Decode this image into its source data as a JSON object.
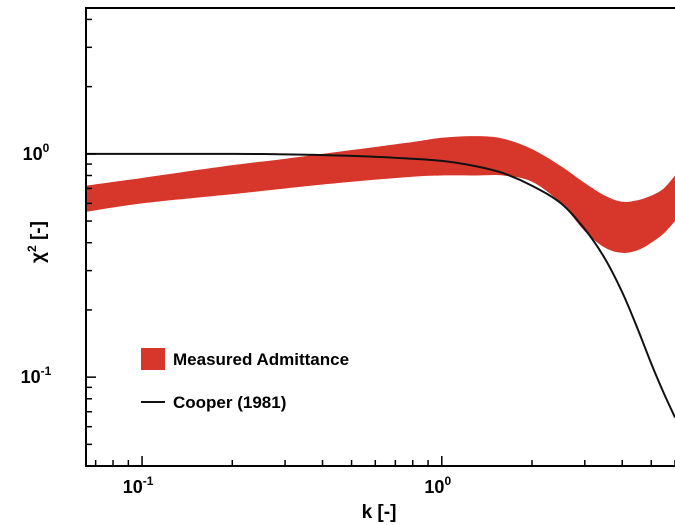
{
  "chart_data": {
    "type": "area",
    "xlabel": "k [-]",
    "ylabel_base": "χ",
    "ylabel_sup": "2",
    "ylabel_unit": " [-]",
    "xscale": "log",
    "yscale": "log",
    "xlim": [
      0.065,
      6.0
    ],
    "ylim": [
      0.04,
      4.5
    ],
    "grid": false,
    "legend_position": "lower-left",
    "x_ticks": [
      {
        "base": "10",
        "exp": "-1",
        "value": 0.1
      },
      {
        "base": "10",
        "exp": "0",
        "value": 1.0
      }
    ],
    "y_ticks": [
      {
        "base": "10",
        "exp": "-1",
        "value": 0.1
      },
      {
        "base": "10",
        "exp": "0",
        "value": 1.0
      }
    ],
    "colors": {
      "band": "#d7372b",
      "line": "#111111"
    },
    "series": [
      {
        "name": "Measured Admittance",
        "kind": "band",
        "x": [
          0.065,
          0.1,
          0.2,
          0.3,
          0.5,
          0.8,
          1.0,
          1.3,
          1.6,
          2.0,
          2.5,
          3.0,
          3.5,
          4.0,
          4.5,
          5.0,
          5.5,
          6.0
        ],
        "lower": [
          0.55,
          0.6,
          0.66,
          0.7,
          0.75,
          0.79,
          0.8,
          0.8,
          0.8,
          0.75,
          0.6,
          0.45,
          0.38,
          0.36,
          0.37,
          0.4,
          0.44,
          0.5
        ],
        "upper": [
          0.72,
          0.78,
          0.89,
          0.95,
          1.04,
          1.13,
          1.18,
          1.2,
          1.17,
          1.05,
          0.88,
          0.74,
          0.65,
          0.61,
          0.62,
          0.65,
          0.7,
          0.8
        ]
      },
      {
        "name": "Cooper (1981)",
        "kind": "line",
        "x": [
          0.065,
          0.1,
          0.2,
          0.3,
          0.5,
          0.7,
          1.0,
          1.3,
          1.6,
          2.0,
          2.5,
          3.0,
          3.5,
          4.0,
          4.5,
          5.0,
          5.5,
          6.0
        ],
        "y": [
          1.0,
          1.0,
          1.0,
          0.995,
          0.98,
          0.96,
          0.93,
          0.88,
          0.82,
          0.72,
          0.6,
          0.46,
          0.34,
          0.24,
          0.165,
          0.115,
          0.085,
          0.066
        ]
      }
    ]
  }
}
